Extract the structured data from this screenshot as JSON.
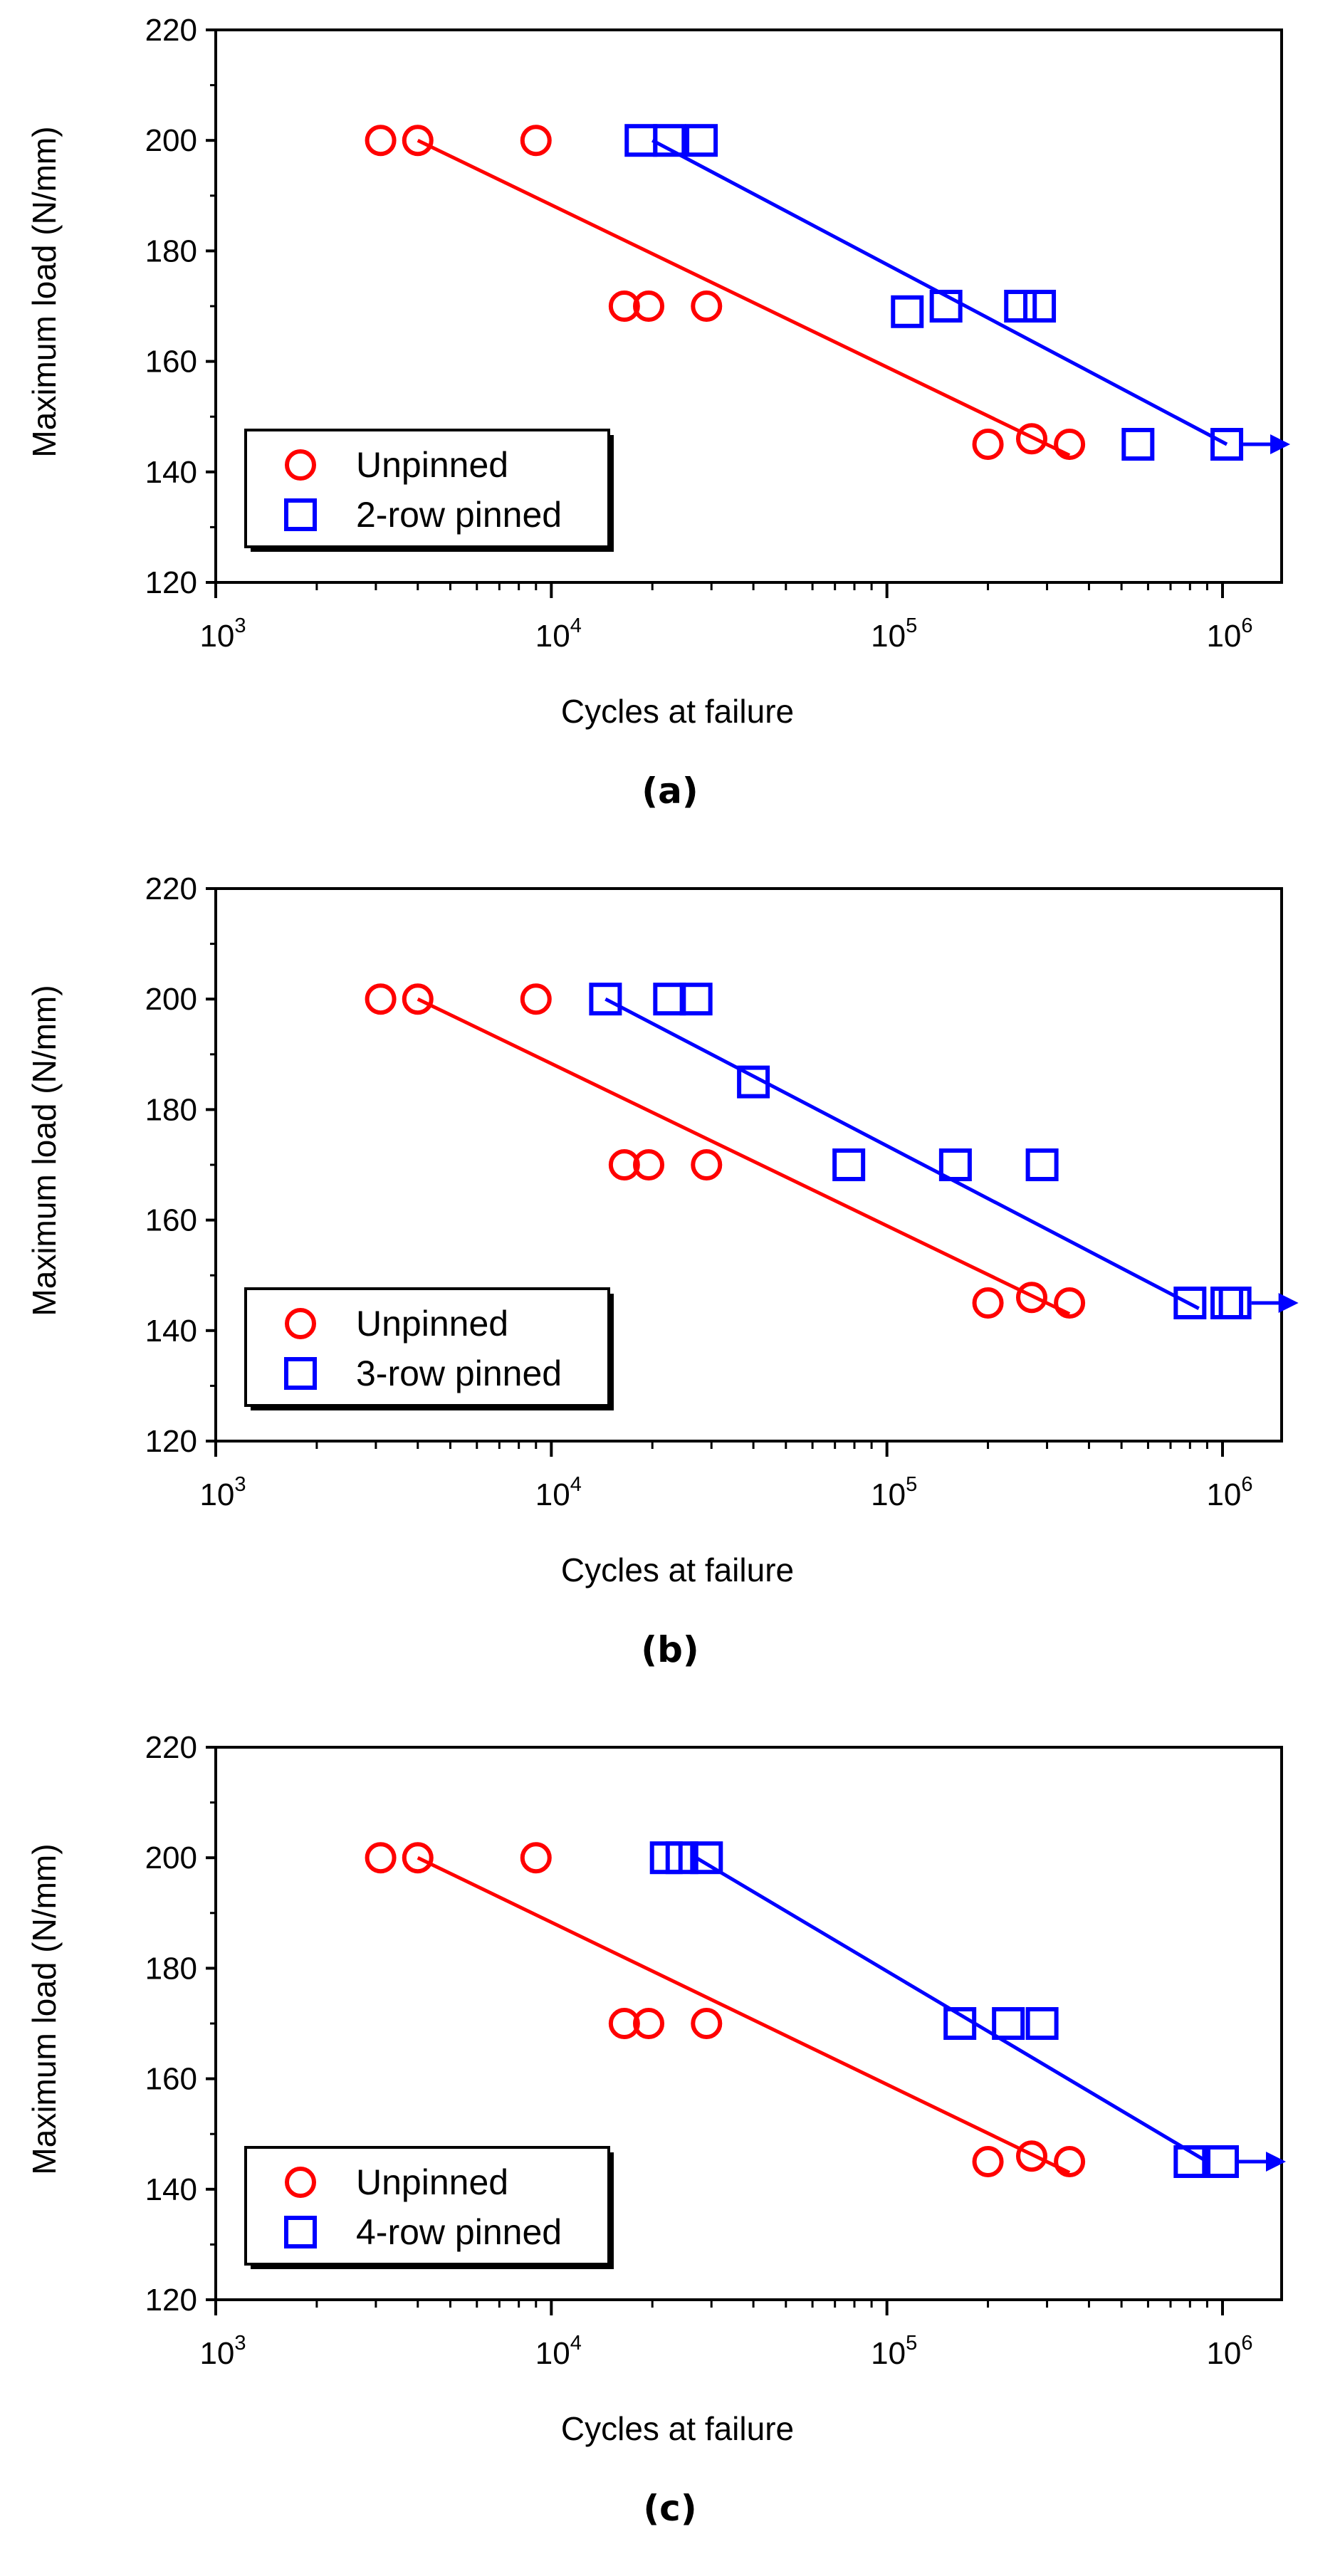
{
  "chart_data": [
    {
      "type": "scatter",
      "caption": "(a)",
      "xlabel": "Cycles at failure",
      "ylabel": "Maximum load (N/mm)",
      "xscale": "log",
      "xlim": [
        1000,
        1500000
      ],
      "ylim": [
        120,
        220
      ],
      "xticks": [
        {
          "base": "10",
          "exp": "3",
          "value": 1000
        },
        {
          "base": "10",
          "exp": "4",
          "value": 10000
        },
        {
          "base": "10",
          "exp": "5",
          "value": 100000
        },
        {
          "base": "10",
          "exp": "6",
          "value": 1000000
        }
      ],
      "yticks": [
        120,
        140,
        160,
        180,
        200,
        220
      ],
      "legend_position": "bottom-left",
      "series": [
        {
          "name": "Unpinned",
          "marker": "circle",
          "color": "#ff0000",
          "points": [
            [
              3100,
              200
            ],
            [
              4000,
              200
            ],
            [
              9000,
              200
            ],
            [
              16500,
              170
            ],
            [
              19500,
              170
            ],
            [
              29000,
              170
            ],
            [
              200000,
              145
            ],
            [
              270000,
              146
            ],
            [
              350000,
              145
            ]
          ],
          "fit": [
            [
              4000,
              200
            ],
            [
              350000,
              143
            ]
          ]
        },
        {
          "name": "2-row pinned",
          "marker": "square",
          "color": "#0000ff",
          "points": [
            [
              18500,
              200
            ],
            [
              22500,
              200
            ],
            [
              28000,
              200
            ],
            [
              115000,
              169
            ],
            [
              150000,
              170
            ],
            [
              250000,
              170
            ],
            [
              285000,
              170
            ],
            [
              560000,
              145
            ],
            [
              1030000,
              145
            ]
          ],
          "fit": [
            [
              20000,
              200
            ],
            [
              1030000,
              145
            ]
          ],
          "runout": [
            1030000,
            145
          ]
        }
      ]
    },
    {
      "type": "scatter",
      "caption": "(b)",
      "xlabel": "Cycles at failure",
      "ylabel": "Maximum load (N/mm)",
      "xscale": "log",
      "xlim": [
        1000,
        1500000
      ],
      "ylim": [
        120,
        220
      ],
      "xticks": [
        {
          "base": "10",
          "exp": "3",
          "value": 1000
        },
        {
          "base": "10",
          "exp": "4",
          "value": 10000
        },
        {
          "base": "10",
          "exp": "5",
          "value": 100000
        },
        {
          "base": "10",
          "exp": "6",
          "value": 1000000
        }
      ],
      "yticks": [
        120,
        140,
        160,
        180,
        200,
        220
      ],
      "legend_position": "bottom-left",
      "series": [
        {
          "name": "Unpinned",
          "marker": "circle",
          "color": "#ff0000",
          "points": [
            [
              3100,
              200
            ],
            [
              4000,
              200
            ],
            [
              9000,
              200
            ],
            [
              16500,
              170
            ],
            [
              19500,
              170
            ],
            [
              29000,
              170
            ],
            [
              200000,
              145
            ],
            [
              270000,
              146
            ],
            [
              350000,
              145
            ]
          ],
          "fit": [
            [
              4000,
              200
            ],
            [
              350000,
              143
            ]
          ]
        },
        {
          "name": "3-row pinned",
          "marker": "square",
          "color": "#0000ff",
          "points": [
            [
              14500,
              200
            ],
            [
              22500,
              200
            ],
            [
              27000,
              200
            ],
            [
              40000,
              185
            ],
            [
              77000,
              170
            ],
            [
              160000,
              170
            ],
            [
              290000,
              170
            ],
            [
              800000,
              145
            ],
            [
              1030000,
              145
            ],
            [
              1090000,
              145
            ]
          ],
          "fit": [
            [
              14500,
              200
            ],
            [
              850000,
              144
            ]
          ],
          "runout": [
            1090000,
            145
          ]
        }
      ]
    },
    {
      "type": "scatter",
      "caption": "(c)",
      "xlabel": "Cycles at failure",
      "ylabel": "Maximum load (N/mm)",
      "xscale": "log",
      "xlim": [
        1000,
        1500000
      ],
      "ylim": [
        120,
        220
      ],
      "xticks": [
        {
          "base": "10",
          "exp": "3",
          "value": 1000
        },
        {
          "base": "10",
          "exp": "4",
          "value": 10000
        },
        {
          "base": "10",
          "exp": "5",
          "value": 100000
        },
        {
          "base": "10",
          "exp": "6",
          "value": 1000000
        }
      ],
      "yticks": [
        120,
        140,
        160,
        180,
        200,
        220
      ],
      "legend_position": "bottom-left",
      "series": [
        {
          "name": "Unpinned",
          "marker": "circle",
          "color": "#ff0000",
          "points": [
            [
              3100,
              200
            ],
            [
              4000,
              200
            ],
            [
              9000,
              200
            ],
            [
              16500,
              170
            ],
            [
              19500,
              170
            ],
            [
              29000,
              170
            ],
            [
              200000,
              145
            ],
            [
              270000,
              146
            ],
            [
              350000,
              145
            ]
          ],
          "fit": [
            [
              4000,
              200
            ],
            [
              350000,
              143
            ]
          ]
        },
        {
          "name": "4-row pinned",
          "marker": "square",
          "color": "#0000ff",
          "points": [
            [
              22000,
              200
            ],
            [
              24500,
              200
            ],
            [
              29000,
              200
            ],
            [
              165000,
              170
            ],
            [
              230000,
              170
            ],
            [
              290000,
              170
            ],
            [
              800000,
              145
            ],
            [
              1000000,
              145
            ]
          ],
          "fit": [
            [
              27000,
              200
            ],
            [
              900000,
              145
            ]
          ],
          "runout": [
            1000000,
            145
          ]
        }
      ]
    }
  ]
}
